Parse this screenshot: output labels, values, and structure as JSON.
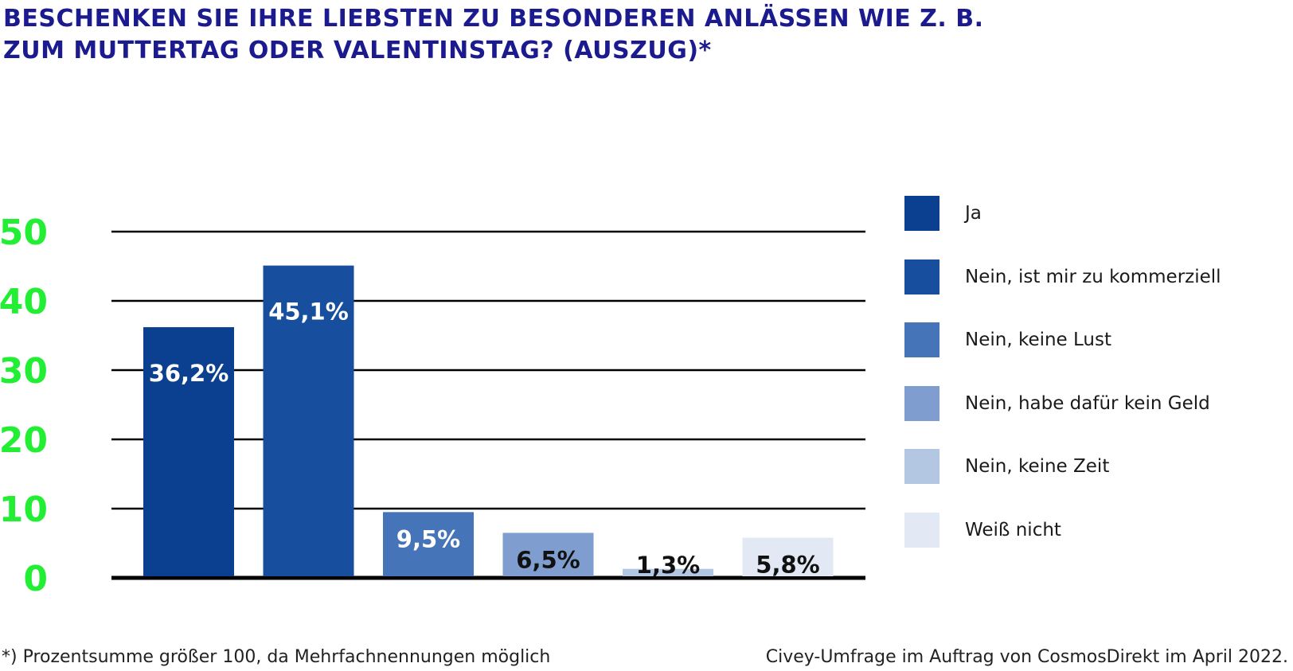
{
  "title": "BESCHENKEN SIE IHRE LIEBSTEN ZU BESONDEREN ANLÄSSEN WIE Z. B. ZUM MUTTERTAG ODER VALENTINSTAG? (AUSZUG)*",
  "footnote": "*) Prozentsumme größer 100, da Mehrfachnennungen möglich",
  "source": "Civey-Umfrage im Auftrag von CosmosDirekt im April 2022.",
  "colors": {
    "title": "#1b1b8f",
    "tick_labels": "#22ee33",
    "gridlines": "#000000"
  },
  "chart_data": {
    "type": "bar",
    "title": "BESCHENKEN SIE IHRE LIEBSTEN ZU BESONDEREN ANLÄSSEN WIE Z. B. ZUM MUTTERTAG ODER VALENTINSTAG? (AUSZUG)*",
    "categories": [
      "Ja",
      "Nein, ist mir zu kommerziell",
      "Nein, keine Lust",
      "Nein, habe dafür kein Geld",
      "Nein, keine Zeit",
      "Weiß nicht"
    ],
    "values": [
      36.2,
      45.1,
      9.5,
      6.5,
      1.3,
      5.8
    ],
    "value_labels": [
      "36,2%",
      "45,1%",
      "9,5%",
      "6,5%",
      "1,3%",
      "5,8%"
    ],
    "colors": [
      "#0b3f8f",
      "#174f9e",
      "#4674b8",
      "#7f9ecf",
      "#b3c6e2",
      "#e2e9f4"
    ],
    "label_colors": [
      "#ffffff",
      "#ffffff",
      "#ffffff",
      "#111111",
      "#111111",
      "#111111"
    ],
    "ylim": [
      0,
      50
    ],
    "yticks": [
      0,
      10,
      20,
      30,
      40,
      50
    ],
    "xlabel": "",
    "ylabel": "",
    "grid": true,
    "legend": "right"
  }
}
